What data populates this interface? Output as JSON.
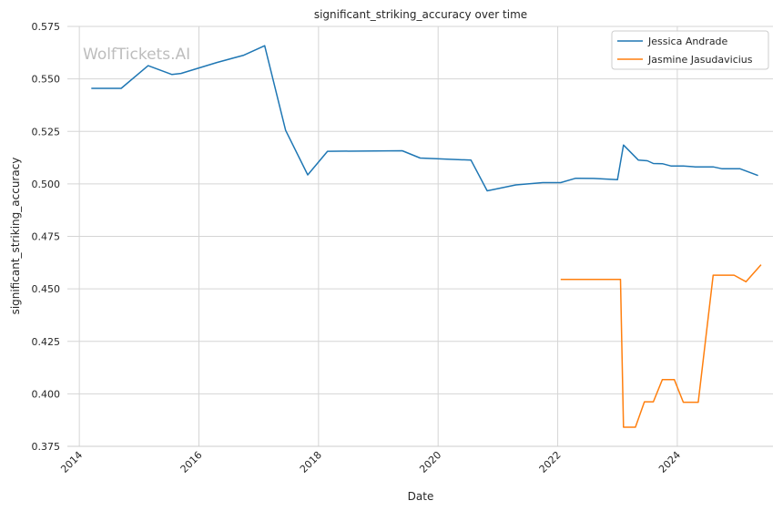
{
  "chart_data": {
    "type": "line",
    "title": "significant_striking_accuracy over time",
    "xlabel": "Date",
    "ylabel": "significant_striking_accuracy",
    "watermark": "WolfTickets.AI",
    "xlim": [
      2013.8,
      2025.6
    ],
    "ylim": [
      0.375,
      0.575
    ],
    "x_ticks": [
      2014,
      2016,
      2018,
      2020,
      2022,
      2024
    ],
    "x_tick_labels": [
      "2014",
      "2016",
      "2018",
      "2020",
      "2022",
      "2024"
    ],
    "y_ticks": [
      0.375,
      0.4,
      0.425,
      0.45,
      0.475,
      0.5,
      0.525,
      0.55,
      0.575
    ],
    "y_tick_labels": [
      "0.375",
      "0.400",
      "0.425",
      "0.450",
      "0.475",
      "0.500",
      "0.525",
      "0.550",
      "0.575"
    ],
    "grid": true,
    "legend_position": "top-right",
    "series": [
      {
        "name": "Jessica Andrade",
        "color": "#1f77b4",
        "points": [
          [
            2014.2,
            0.5455
          ],
          [
            2014.7,
            0.5455
          ],
          [
            2015.15,
            0.5563
          ],
          [
            2015.55,
            0.5521
          ],
          [
            2015.7,
            0.5526
          ],
          [
            2016.3,
            0.5578
          ],
          [
            2016.75,
            0.5613
          ],
          [
            2017.1,
            0.5658
          ],
          [
            2017.45,
            0.5255
          ],
          [
            2017.82,
            0.5043
          ],
          [
            2018.15,
            0.5155
          ],
          [
            2019.4,
            0.5158
          ],
          [
            2019.7,
            0.5123
          ],
          [
            2020.55,
            0.5113
          ],
          [
            2020.82,
            0.4967
          ],
          [
            2021.3,
            0.4995
          ],
          [
            2021.75,
            0.5006
          ],
          [
            2022.05,
            0.5006
          ],
          [
            2022.3,
            0.5027
          ],
          [
            2022.6,
            0.5026
          ],
          [
            2023.0,
            0.502
          ],
          [
            2023.1,
            0.5185
          ],
          [
            2023.35,
            0.5113
          ],
          [
            2023.5,
            0.511
          ],
          [
            2023.6,
            0.5097
          ],
          [
            2023.75,
            0.5096
          ],
          [
            2023.9,
            0.5085
          ],
          [
            2024.1,
            0.5085
          ],
          [
            2024.3,
            0.5081
          ],
          [
            2024.6,
            0.5081
          ],
          [
            2024.75,
            0.5072
          ],
          [
            2025.05,
            0.5072
          ],
          [
            2025.35,
            0.504
          ]
        ]
      },
      {
        "name": "Jasmine Jasudavicius",
        "color": "#ff7f0e",
        "points": [
          [
            2022.05,
            0.4545
          ],
          [
            2023.05,
            0.4545
          ],
          [
            2023.1,
            0.3841
          ],
          [
            2023.3,
            0.3841
          ],
          [
            2023.45,
            0.3962
          ],
          [
            2023.6,
            0.3962
          ],
          [
            2023.75,
            0.4068
          ],
          [
            2023.95,
            0.4068
          ],
          [
            2024.1,
            0.396
          ],
          [
            2024.35,
            0.396
          ],
          [
            2024.6,
            0.4565
          ],
          [
            2024.95,
            0.4565
          ],
          [
            2025.15,
            0.4534
          ],
          [
            2025.4,
            0.4615
          ]
        ]
      }
    ]
  }
}
